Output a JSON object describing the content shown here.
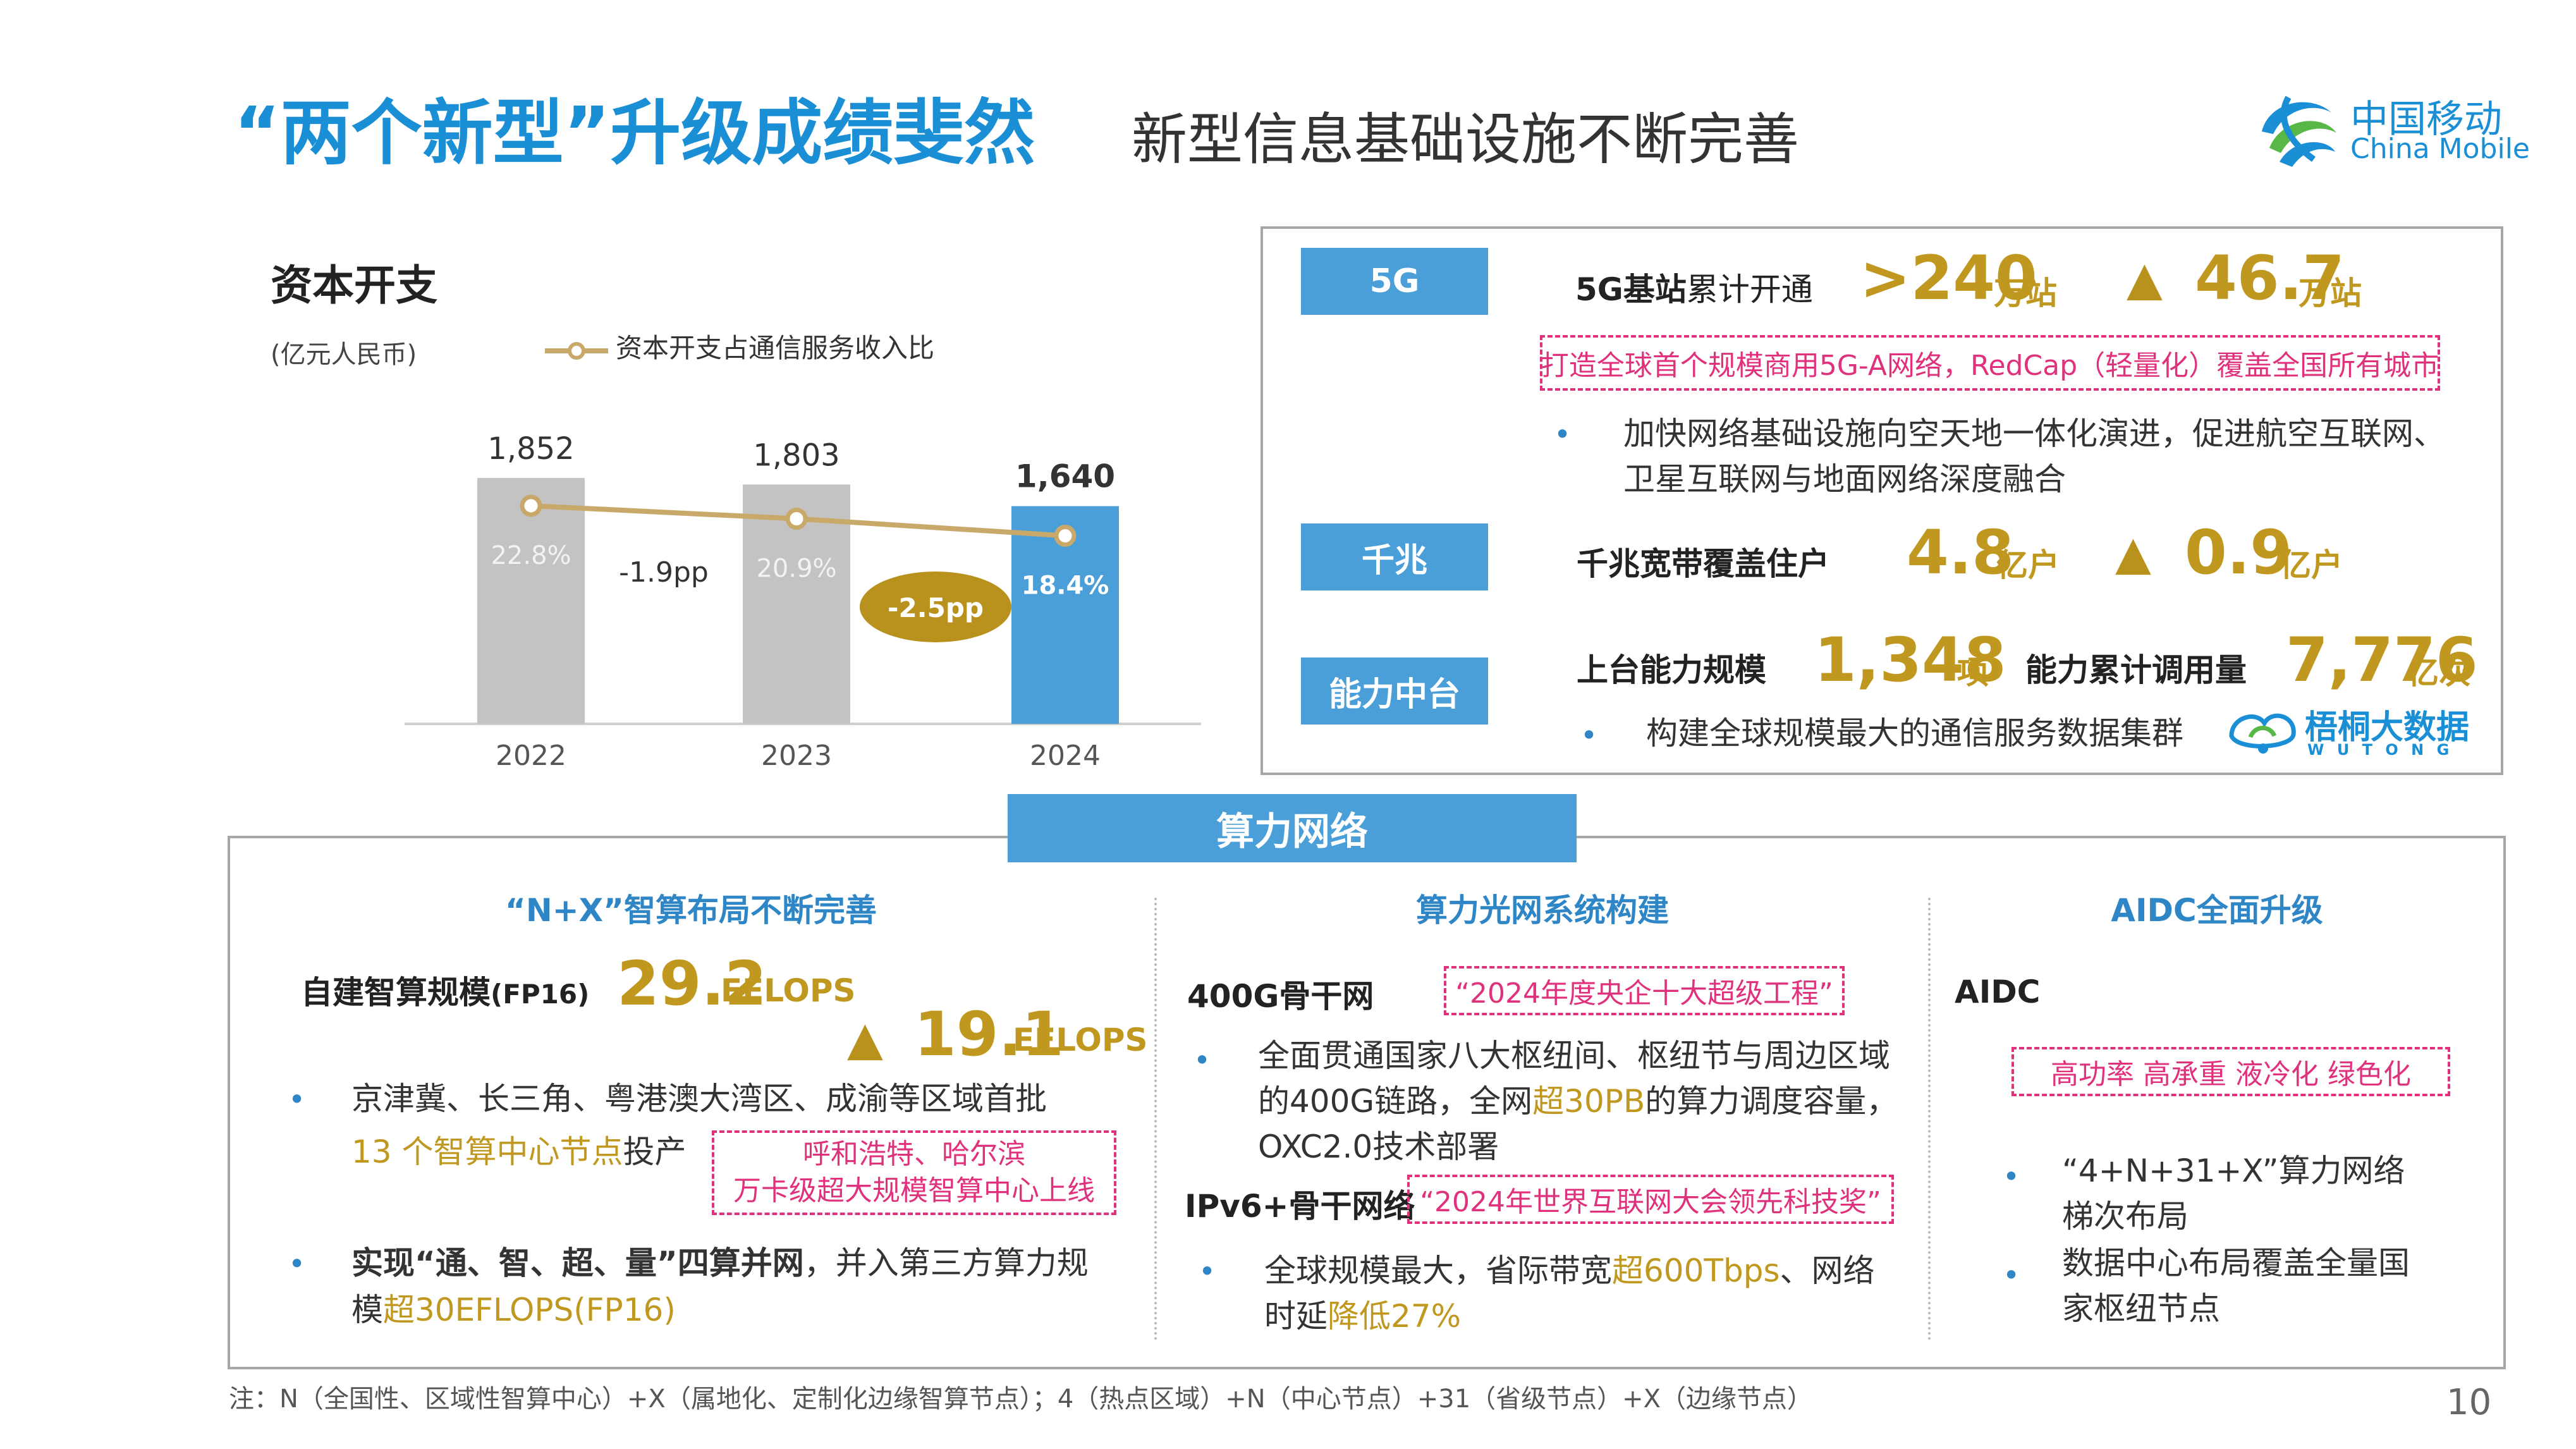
{
  "header": {
    "title": "“两个新型”升级成绩斐然",
    "subtitle": "新型信息基础设施不断完善",
    "logo_cn": "中国移动",
    "logo_en": "China Mobile"
  },
  "capex": {
    "title": "资本开支",
    "unit": "(亿元人民币)",
    "legend": "资本开支占通信服务收入比",
    "change_labels": [
      "-1.9pp",
      "-2.5pp"
    ]
  },
  "chart_data": {
    "type": "bar",
    "categories": [
      "2022",
      "2023",
      "2024"
    ],
    "series": [
      {
        "type": "bar",
        "values": [
          1852,
          1803,
          1640
        ],
        "value_labels": [
          "1,852",
          "1,803",
          "1,640"
        ]
      },
      {
        "name": "资本开支占通信服务收入比",
        "type": "line",
        "values": [
          22.8,
          20.9,
          18.4
        ],
        "value_labels": [
          "22.8%",
          "20.9%",
          "18.4%"
        ]
      }
    ],
    "colors": {
      "bar_past": "#c3c3c3",
      "bar_current": "#4a9fd8",
      "line": "#c8a96a"
    }
  },
  "network": {
    "g5": {
      "tag": "5G",
      "label_bold": "5G基站",
      "label": "累计开通",
      "value": ">240",
      "unit": "万站",
      "delta": "46.7",
      "delta_unit": "万站",
      "highlight": "打造全球首个规模商用5G-A网络，RedCap（轻量化）覆盖全国所有城市",
      "bullet_line1": "加快网络基础设施向空天地一体化演进，促进航空互联网、",
      "bullet_line2": "卫星互联网与地面网络深度融合"
    },
    "gigabit": {
      "tag": "千兆",
      "label": "千兆宽带覆盖住户",
      "value": "4.8",
      "unit": "亿户",
      "delta": "0.9",
      "delta_unit": "亿户"
    },
    "platform": {
      "tag": "能力中台",
      "label1": "上台能力规模",
      "value1": "1,348",
      "unit1": "项",
      "label2": "能力累计调用量",
      "value2": "7,776",
      "unit2": "亿次",
      "bullet": "构建全球规模最大的通信服务数据集群",
      "brand_cn": "梧桐大数据",
      "brand_en": "W U   T O N G"
    },
    "triangle": "▲",
    "bullet_char": "•"
  },
  "compute": {
    "header": "算力网络",
    "col1": {
      "title": "“N+X”智算布局不断完善",
      "label": "自建智算规模",
      "label_suffix": "(FP16)",
      "value": "29.2",
      "unit": "EFLOPS",
      "delta": "19.1",
      "delta_unit": "EFLOPS",
      "b1_line1": "京津冀、长三角、粤港澳大湾区、成渝等区域首批",
      "b1_hl": "13 个智算中心节点",
      "b1_tail": "投产",
      "box_line1": "呼和浩特、哈尔滨",
      "box_line2": "万卡级超大规模智算中心上线",
      "b2_bold": "实现“通、智、超、量”四算并网",
      "b2_tail": "，并入第三方算力规",
      "b2_line2_pre": "模",
      "b2_line2_hl": "超30EFLOPS(FP16)"
    },
    "col2": {
      "title": "算力光网系统构建",
      "label1": "400G骨干网",
      "box1": "“2024年度央企十大超级工程”",
      "b1_line1": "全面贯通国家八大枢纽间、枢纽节与周边区域",
      "b1_line2_pre": "的400G链路，全网",
      "b1_line2_hl": "超30PB",
      "b1_line2_tail": "的算力调度容量，",
      "b1_line3": "OXC2.0技术部署",
      "label2": "IPv6+骨干网络",
      "box2": "“2024年世界互联网大会领先科技奖”",
      "b2_line1_pre": "全球规模最大，省际带宽",
      "b2_line1_hl": "超600Tbps",
      "b2_line1_tail": "、网络",
      "b2_line2_pre": "时延",
      "b2_line2_hl": "降低27%"
    },
    "col3": {
      "title": "AIDC全面升级",
      "label": "AIDC",
      "box": "高功率  高承重  液冷化  绿色化",
      "b1_line1": "“4+N+31+X”算力网络",
      "b1_line2": "梯次布局",
      "b2_line1": "数据中心布局覆盖全量国",
      "b2_line2": "家枢纽节点"
    }
  },
  "footnote": "注：N（全国性、区域性智算中心）+X（属地化、定制化边缘智算节点）；4（热点区域）+N（中心节点）+31（省级节点）+X（边缘节点）",
  "page_number": "10"
}
